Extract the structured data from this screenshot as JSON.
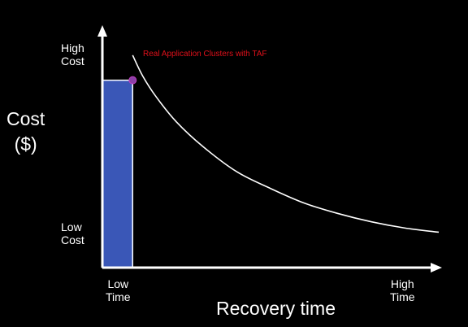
{
  "chart_data": {
    "type": "line",
    "title": "",
    "xlabel": "Recovery time",
    "ylabel": [
      "Cost",
      "($)"
    ],
    "x_ticks": [
      {
        "line1": "Low",
        "line2": "Time"
      },
      {
        "line1": "High",
        "line2": "Time"
      }
    ],
    "y_ticks": [
      {
        "line1": "High",
        "line2": "Cost"
      },
      {
        "line1": "Low",
        "line2": "Cost"
      }
    ],
    "xlim": [
      0,
      1
    ],
    "ylim": [
      0,
      1
    ],
    "series": [
      {
        "kind": "curve",
        "color": "#ffffff",
        "x": [
          0.09,
          0.12,
          0.16,
          0.22,
          0.3,
          0.4,
          0.5,
          0.6,
          0.7,
          0.8,
          0.9,
          1.0
        ],
        "y": [
          1.02,
          0.92,
          0.82,
          0.7,
          0.58,
          0.46,
          0.38,
          0.31,
          0.26,
          0.22,
          0.19,
          0.17
        ]
      }
    ],
    "highlight_bar": {
      "x_start": 0,
      "x_end": 0.09,
      "value": 0.9,
      "color": "#3a57b7"
    },
    "annotation": {
      "text": "Real Application Clusters with TAF",
      "x": 0.09,
      "y": 0.9,
      "color": "#e0101a",
      "marker_color": "#8b3fa8"
    },
    "grid": false,
    "legend": "none"
  }
}
